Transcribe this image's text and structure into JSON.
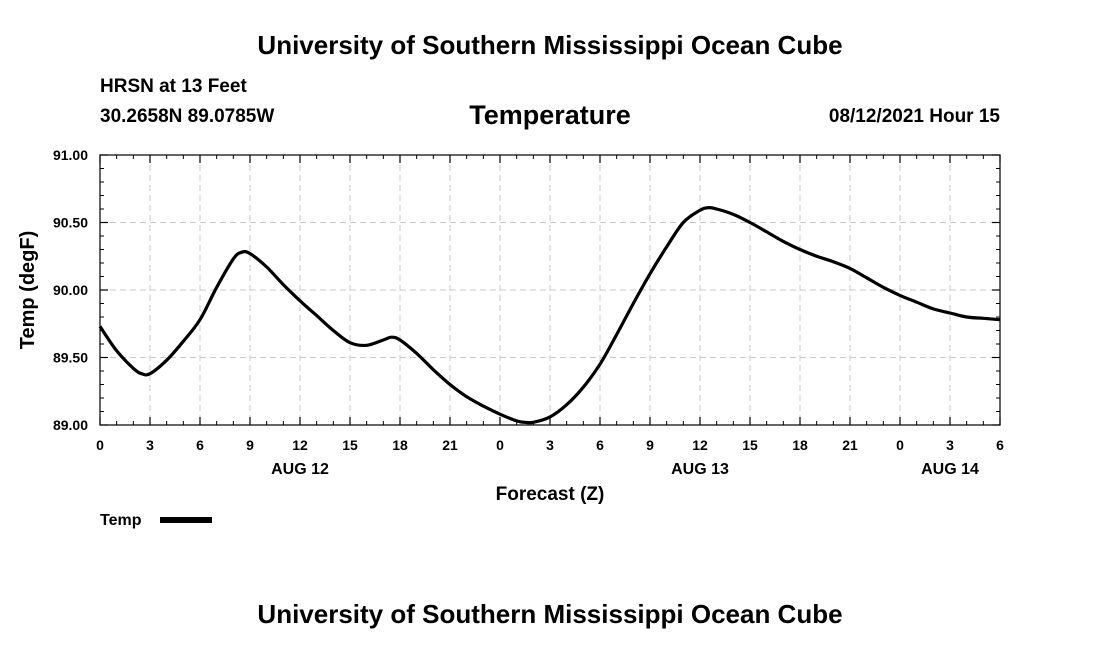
{
  "header": {
    "title": "University of Southern Mississippi Ocean Cube",
    "station": "HRSN at 13 Feet",
    "coordinates": "30.2658N  89.0785W",
    "subtitle": "Temperature",
    "datetime": "08/12/2021 Hour 15"
  },
  "footer": {
    "title": "University of Southern Mississippi Ocean Cube"
  },
  "chart_data": {
    "type": "line",
    "title": "Temperature",
    "xlabel": "Forecast (Z)",
    "ylabel": "Temp (degF)",
    "ylim": [
      89.0,
      91.0
    ],
    "yticks": [
      89.0,
      89.5,
      90.0,
      90.5,
      91.0
    ],
    "ytick_labels": [
      "89.00",
      "89.50",
      "90.00",
      "90.50",
      "91.00"
    ],
    "xlim": [
      0,
      54
    ],
    "xticks": [
      0,
      3,
      6,
      9,
      12,
      15,
      18,
      21,
      24,
      27,
      30,
      33,
      36,
      39,
      42,
      45,
      48,
      51,
      54
    ],
    "xtick_labels": [
      "0",
      "3",
      "6",
      "9",
      "12",
      "15",
      "18",
      "21",
      "0",
      "3",
      "6",
      "9",
      "12",
      "15",
      "18",
      "21",
      "0",
      "3",
      "6"
    ],
    "date_labels": [
      {
        "label": "AUG 12",
        "x": 12
      },
      {
        "label": "AUG 13",
        "x": 36
      },
      {
        "label": "AUG 14",
        "x": 51
      }
    ],
    "grid": true,
    "legend": {
      "position": "bottom-left",
      "entries": [
        "Temp"
      ]
    },
    "series": [
      {
        "name": "Temp",
        "color": "#000000",
        "x": [
          0,
          1,
          2,
          2.5,
          3,
          4,
          5,
          6,
          7,
          8,
          8.5,
          9,
          10,
          11,
          12,
          13,
          14,
          15,
          16,
          17,
          17.5,
          18,
          19,
          20,
          21,
          22,
          23,
          24,
          25,
          25.5,
          26,
          27,
          28,
          29,
          30,
          31,
          32,
          33,
          34,
          35,
          36,
          36.5,
          37,
          38,
          39,
          40,
          41,
          42,
          43,
          44,
          45,
          46,
          47,
          48,
          49,
          50,
          51,
          52,
          53,
          54
        ],
        "values": [
          89.73,
          89.55,
          89.42,
          89.38,
          89.38,
          89.48,
          89.62,
          89.78,
          90.02,
          90.23,
          90.28,
          90.27,
          90.17,
          90.04,
          89.92,
          89.81,
          89.7,
          89.61,
          89.59,
          89.63,
          89.65,
          89.63,
          89.53,
          89.41,
          89.3,
          89.21,
          89.14,
          89.08,
          89.03,
          89.02,
          89.02,
          89.06,
          89.15,
          89.28,
          89.45,
          89.67,
          89.9,
          90.12,
          90.32,
          90.5,
          90.59,
          90.61,
          90.6,
          90.56,
          90.5,
          90.43,
          90.36,
          90.3,
          90.25,
          90.21,
          90.16,
          90.09,
          90.02,
          89.96,
          89.91,
          89.86,
          89.83,
          89.8,
          89.79,
          89.78
        ]
      }
    ]
  }
}
